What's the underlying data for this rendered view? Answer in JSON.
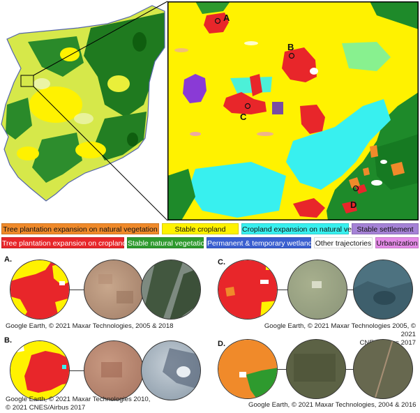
{
  "map_points": [
    {
      "label": "A"
    },
    {
      "label": "B"
    },
    {
      "label": "C"
    },
    {
      "label": "D"
    }
  ],
  "legend": [
    {
      "label": "Tree plantation expansion on natural vegetation",
      "color": "#f08a2a",
      "text_color": "#111111"
    },
    {
      "label": "Stable cropland",
      "color": "#fff200",
      "text_color": "#111111"
    },
    {
      "label": "Cropland expansion on natural vegetation",
      "color": "#38f0ef",
      "text_color": "#111111"
    },
    {
      "label": "Stable settlement",
      "color": "#a582d6",
      "text_color": "#111111"
    },
    {
      "label": "Tree plantation expansion on cropland",
      "color": "#e8262a",
      "text_color": "#ffffff"
    },
    {
      "label": "Stable natural vegetation",
      "color": "#2e9a2e",
      "text_color": "#ffffff"
    },
    {
      "label": "Permanent & temporary wetland",
      "color": "#3a5fd0",
      "text_color": "#ffffff"
    },
    {
      "label": "Other trajectories",
      "color": "#ffffff",
      "text_color": "#111111"
    },
    {
      "label": "Urbanization",
      "color": "#e58be8",
      "text_color": "#111111"
    }
  ],
  "panels": [
    {
      "label": "A.",
      "caption": "Google Earth, © 2021 Maxar Technologies, 2005 & 2018"
    },
    {
      "label": "B.",
      "caption_line1": "Google Earth, © 2021 Maxar Technologies 2010,",
      "caption_line2": "© 2021 CNES/Airbus 2017"
    },
    {
      "label": "C.",
      "caption_line1": "Google Earth, © 2021 Maxar Technologies 2005, © 2021",
      "caption_line2": "CNES/Airbus 2017"
    },
    {
      "label": "D.",
      "caption": "Google Earth, © 2021 Maxar Technologies, 2004 & 2016"
    }
  ]
}
